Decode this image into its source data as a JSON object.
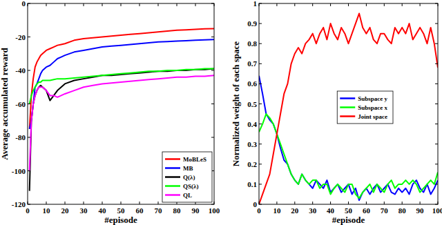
{
  "chart_data": [
    {
      "type": "line",
      "x_label": "#episode",
      "y_label": "Average accumulated reward",
      "x": [
        1,
        2,
        3,
        4,
        5,
        6,
        7,
        8,
        10,
        12,
        14,
        16,
        18,
        20,
        25,
        30,
        35,
        40,
        45,
        50,
        55,
        60,
        65,
        70,
        75,
        80,
        85,
        90,
        95,
        100
      ],
      "series": [
        {
          "name": "MoBLeS",
          "color": "#ff0000",
          "values": [
            -75,
            -55,
            -45,
            -38,
            -35,
            -33,
            -31,
            -30,
            -28,
            -27,
            -26,
            -25,
            -24.5,
            -24,
            -22,
            -21,
            -20.5,
            -20,
            -19.5,
            -19,
            -18.5,
            -18,
            -17.5,
            -17,
            -16.5,
            -16,
            -15.8,
            -15.5,
            -15.2,
            -15
          ]
        },
        {
          "name": "MB",
          "color": "#0000ff",
          "values": [
            -75,
            -70,
            -60,
            -50,
            -48,
            -45,
            -42,
            -40,
            -38,
            -37,
            -35,
            -33,
            -32,
            -31,
            -29,
            -28,
            -27,
            -26,
            -25.5,
            -25,
            -24.5,
            -24,
            -23.5,
            -23,
            -22.8,
            -22.5,
            -22.3,
            -22,
            -21.8,
            -21.5
          ]
        },
        {
          "name": "Q(λ)",
          "color": "#000000",
          "values": [
            -112,
            -70,
            -60,
            -55,
            -52,
            -50,
            -49,
            -50,
            -52,
            -58,
            -55,
            -52,
            -50,
            -48,
            -46,
            -45,
            -44,
            -43,
            -43,
            -42.5,
            -42,
            -41.5,
            -41,
            -40.5,
            -40.5,
            -40,
            -40,
            -39.5,
            -39.5,
            -39
          ]
        },
        {
          "name": "QS(λ)",
          "color": "#00ff00",
          "values": [
            -60,
            -55,
            -52,
            -50,
            -48,
            -47,
            -47,
            -46,
            -46,
            -46,
            -45.5,
            -45,
            -45,
            -45,
            -44.5,
            -44,
            -43.5,
            -43,
            -42.5,
            -42,
            -41.5,
            -41,
            -40.5,
            -40.5,
            -40,
            -40,
            -39.5,
            -39.5,
            -39,
            -39
          ]
        },
        {
          "name": "QL",
          "color": "#ff00ff",
          "values": [
            -100,
            -70,
            -60,
            -55,
            -52,
            -50,
            -50,
            -50,
            -52,
            -55,
            -55,
            -56,
            -55,
            -54,
            -52,
            -50,
            -49,
            -48,
            -47.5,
            -47,
            -46.5,
            -46,
            -45.5,
            -45,
            -44.5,
            -44,
            -44,
            -43.5,
            -43.5,
            -43
          ]
        }
      ],
      "xlim": [
        0,
        100
      ],
      "xticks": [
        0,
        10,
        20,
        30,
        40,
        50,
        60,
        70,
        80,
        90,
        100
      ],
      "ylim": [
        -120,
        0
      ],
      "yticks": [
        -120,
        -100,
        -80,
        -60,
        -40,
        -20,
        0
      ],
      "grid": false,
      "legend": "lower right"
    },
    {
      "type": "line",
      "x_label": "#episode",
      "y_label": "Normalized weight of each space",
      "x": [
        0,
        2,
        4,
        6,
        8,
        10,
        12,
        14,
        16,
        18,
        20,
        22,
        24,
        26,
        28,
        30,
        32,
        34,
        36,
        38,
        40,
        42,
        44,
        46,
        48,
        50,
        52,
        54,
        56,
        58,
        60,
        62,
        64,
        66,
        68,
        70,
        72,
        74,
        76,
        78,
        80,
        82,
        84,
        86,
        88,
        90,
        92,
        94,
        96,
        98,
        100
      ],
      "series": [
        {
          "name": "Subspace y",
          "color": "#0000ff",
          "values": [
            0.64,
            0.55,
            0.45,
            0.42,
            0.4,
            0.35,
            0.28,
            0.22,
            0.2,
            0.15,
            0.12,
            0.1,
            0.15,
            0.12,
            0.1,
            0.08,
            0.12,
            0.1,
            0.08,
            0.12,
            0.06,
            0.08,
            0.1,
            0.06,
            0.08,
            0.1,
            0.05,
            0.08,
            0.02,
            0.06,
            0.08,
            0.05,
            0.08,
            0.1,
            0.06,
            0.08,
            0.1,
            0.06,
            0.05,
            0.08,
            0.06,
            0.08,
            0.05,
            0.1,
            0.12,
            0.08,
            0.06,
            0.1,
            0.05,
            0.08,
            0.12
          ]
        },
        {
          "name": "Subspace x",
          "color": "#00ff00",
          "values": [
            0.36,
            0.4,
            0.45,
            0.43,
            0.4,
            0.35,
            0.3,
            0.25,
            0.2,
            0.15,
            0.12,
            0.1,
            0.15,
            0.12,
            0.1,
            0.12,
            0.12,
            0.08,
            0.1,
            0.1,
            0.05,
            0.08,
            0.1,
            0.08,
            0.06,
            0.1,
            0.1,
            0.05,
            0.03,
            0.06,
            0.08,
            0.1,
            0.06,
            0.1,
            0.08,
            0.06,
            0.1,
            0.12,
            0.08,
            0.1,
            0.1,
            0.12,
            0.1,
            0.12,
            0.1,
            0.06,
            0.08,
            0.1,
            0.12,
            0.1,
            0.16
          ]
        },
        {
          "name": "Joint space",
          "color": "#ff0000",
          "values": [
            0,
            0.05,
            0.1,
            0.15,
            0.25,
            0.35,
            0.45,
            0.55,
            0.6,
            0.7,
            0.75,
            0.78,
            0.75,
            0.8,
            0.82,
            0.85,
            0.8,
            0.85,
            0.88,
            0.82,
            0.9,
            0.85,
            0.82,
            0.88,
            0.85,
            0.8,
            0.85,
            0.9,
            0.95,
            0.88,
            0.85,
            0.88,
            0.82,
            0.8,
            0.85,
            0.85,
            0.82,
            0.8,
            0.88,
            0.85,
            0.88,
            0.85,
            0.9,
            0.82,
            0.85,
            0.88,
            0.85,
            0.8,
            0.88,
            0.8,
            0.68
          ]
        }
      ],
      "xlim": [
        0,
        100
      ],
      "xticks": [
        0,
        10,
        20,
        30,
        40,
        50,
        60,
        70,
        80,
        90,
        100
      ],
      "ylim": [
        0,
        1
      ],
      "yticks": [
        0,
        0.1,
        0.2,
        0.3,
        0.4,
        0.5,
        0.6,
        0.7,
        0.8,
        0.9,
        1
      ],
      "grid": false,
      "legend": "right"
    }
  ]
}
